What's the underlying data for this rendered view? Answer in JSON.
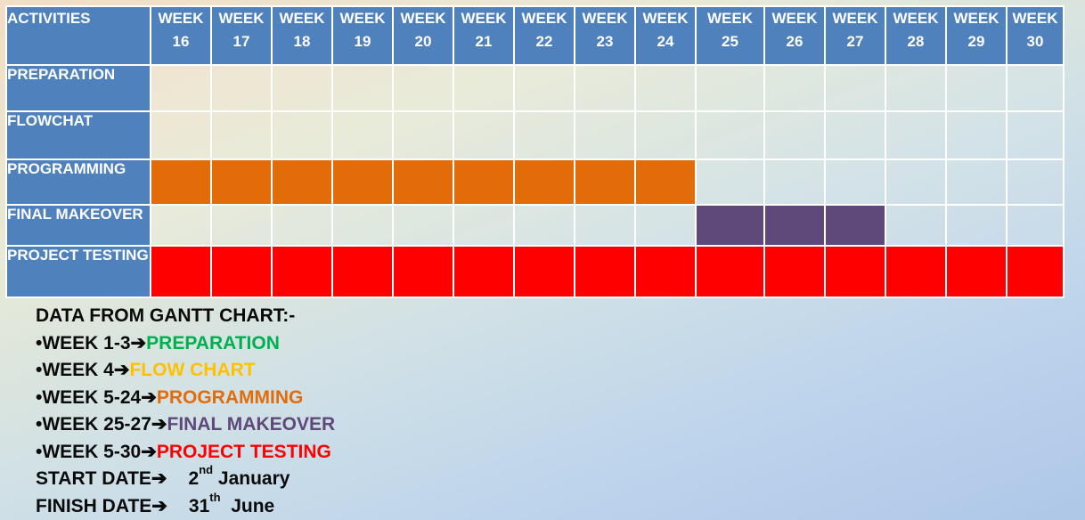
{
  "chart_data": {
    "type": "table",
    "header_label": "ACTIVITIES",
    "week_prefix": "WEEK",
    "weeks": [
      "16",
      "17",
      "18",
      "19",
      "20",
      "21",
      "22",
      "23",
      "24",
      "25",
      "26",
      "27",
      "28",
      "29",
      "30"
    ],
    "activities": [
      {
        "name": "PREPARATION",
        "start_week": null,
        "end_week": null,
        "color": ""
      },
      {
        "name": "FLOWCHAT",
        "start_week": null,
        "end_week": null,
        "color": ""
      },
      {
        "name": "PROGRAMMING",
        "start_week": 16,
        "end_week": 24,
        "color": "#e36c0a"
      },
      {
        "name": "FINAL MAKEOVER",
        "start_week": 25,
        "end_week": 27,
        "color": "#5f497a"
      },
      {
        "name": "PROJECT TESTING",
        "start_week": 16,
        "end_week": 30,
        "color": "#ff0000"
      }
    ]
  },
  "notes": {
    "title": "DATA FROM GANTT CHART:-",
    "items": [
      {
        "weeks": "•WEEK 1-3",
        "label": "PREPARATION",
        "color": "#00b050"
      },
      {
        "weeks": "•WEEK 4",
        "label": "FLOW CHART",
        "color": "#ffc000"
      },
      {
        "weeks": "•WEEK 5-24",
        "label": "PROGRAMMING",
        "color": "#e36c0a"
      },
      {
        "weeks": "•WEEK 25-27",
        "label": "FINAL MAKEOVER",
        "color": "#5f497a"
      },
      {
        "weeks": "•WEEK 5-30",
        "label": "PROJECT TESTING",
        "color": "#ff0000"
      }
    ],
    "arrow": "➔",
    "start": {
      "label": "START DATE",
      "day": "2",
      "suffix": "nd",
      "month": "January"
    },
    "finish": {
      "label": "FINISH DATE",
      "day": "31",
      "suffix": "th",
      "month": "June"
    }
  }
}
